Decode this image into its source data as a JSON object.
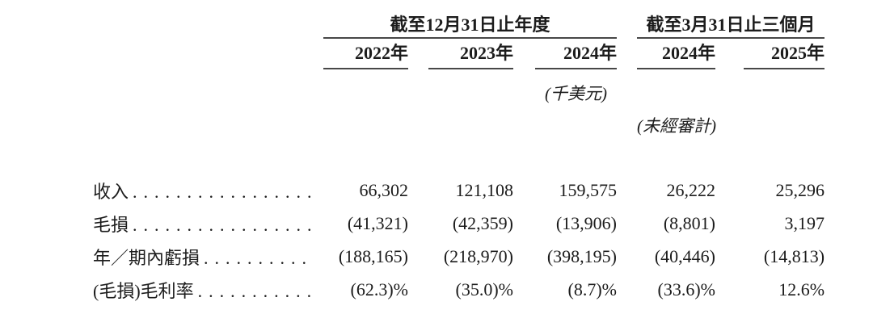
{
  "document": {
    "background": "#ffffff",
    "text_color": "#1c1c1c",
    "rule_color": "#474747"
  },
  "table": {
    "period_groups": [
      {
        "label": "截至12月31日止年度",
        "span": 3
      },
      {
        "label": "截至3月31日止三個月",
        "span": 2
      }
    ],
    "year_headers": [
      "2022年",
      "2023年",
      "2024年",
      "2024年",
      "2025年"
    ],
    "unit_note": "(千美元)",
    "unaudited_note": "(未經審計)",
    "rows": [
      {
        "label": "收入",
        "leader": "........................",
        "values": [
          "66,302",
          "121,108",
          "159,575",
          "26,222",
          "25,296"
        ]
      },
      {
        "label": "毛損",
        "leader": "........................",
        "values": [
          "(41,321)",
          "(42,359)",
          "(13,906)",
          "(8,801)",
          "3,197"
        ]
      },
      {
        "label": "年／期內虧損",
        "leader": "..................",
        "values": [
          "(188,165)",
          "(218,970)",
          "(398,195)",
          "(40,446)",
          "(14,813)"
        ]
      },
      {
        "label": "(毛損)毛利率",
        "leader": "..................",
        "values": [
          "(62.3)%",
          "(35.0)%",
          "(8.7)%",
          "(33.6)%",
          "12.6%"
        ]
      }
    ]
  }
}
